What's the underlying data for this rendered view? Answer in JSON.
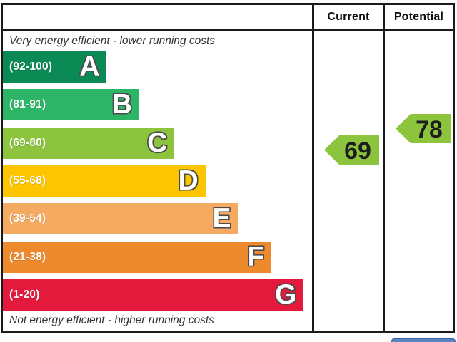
{
  "header": {
    "current_label": "Current",
    "potential_label": "Potential"
  },
  "captions": {
    "top": "Very energy efficient - lower running costs",
    "bottom": "Not energy efficient - higher running costs"
  },
  "bands": [
    {
      "letter": "A",
      "range": "(92-100)",
      "color": "#0b8a56",
      "width_pct": 33.6
    },
    {
      "letter": "B",
      "range": "(81-91)",
      "color": "#2cb566",
      "width_pct": 44.1
    },
    {
      "letter": "C",
      "range": "(69-80)",
      "color": "#8cc43e",
      "width_pct": 55.5
    },
    {
      "letter": "D",
      "range": "(55-68)",
      "color": "#fdc400",
      "width_pct": 65.5
    },
    {
      "letter": "E",
      "range": "(39-54)",
      "color": "#f4aa61",
      "width_pct": 76.1
    },
    {
      "letter": "F",
      "range": "(21-38)",
      "color": "#ee8a2e",
      "width_pct": 86.9
    },
    {
      "letter": "G",
      "range": "(1-20)",
      "color": "#e41a3c",
      "width_pct": 97.3
    }
  ],
  "ratings": {
    "current": {
      "value": "69",
      "color": "#8cc43e"
    },
    "potential": {
      "value": "78",
      "color": "#8cc43e"
    }
  },
  "chart_data": {
    "type": "bar",
    "subtype": "epc-energy-efficiency-rating",
    "orientation": "horizontal",
    "title": "",
    "categories": [
      "A",
      "B",
      "C",
      "D",
      "E",
      "F",
      "G"
    ],
    "band_ranges": [
      "92-100",
      "81-91",
      "69-80",
      "55-68",
      "39-54",
      "21-38",
      "1-20"
    ],
    "band_colors": [
      "#0b8a56",
      "#2cb566",
      "#8cc43e",
      "#fdc400",
      "#f4aa61",
      "#ee8a2e",
      "#e41a3c"
    ],
    "bar_relative_widths": [
      0.336,
      0.441,
      0.555,
      0.655,
      0.761,
      0.869,
      0.973
    ],
    "series": [
      {
        "name": "Current",
        "value": 69,
        "band": "C"
      },
      {
        "name": "Potential",
        "value": 78,
        "band": "C"
      }
    ],
    "annotations": [
      "Very energy efficient - lower running costs",
      "Not energy efficient - higher running costs"
    ],
    "value_range": [
      1,
      100
    ],
    "grid": false,
    "legend_position": "column-headers-top-right"
  }
}
